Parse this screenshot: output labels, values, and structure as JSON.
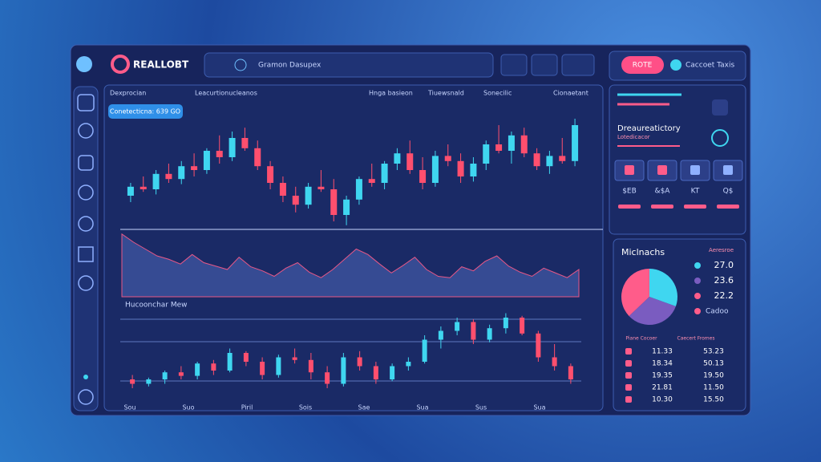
{
  "header": {
    "brand": "REALLOBT",
    "search": "Gramon Dasupex",
    "button": "ROTE",
    "user": "Caccoet Taxis"
  },
  "toolbar": [
    "Dexprocian",
    "Leacurtionucleanos",
    "Hnga basieon",
    "Tiuewsnald",
    "Sonecilic",
    "Cionaetant"
  ],
  "badge": "Conetecticna: 639 GO",
  "main_chart": {
    "type": "candlestick",
    "ylim": [
      0,
      100
    ],
    "candles": [
      [
        35,
        45,
        30,
        42
      ],
      [
        42,
        50,
        38,
        40
      ],
      [
        40,
        55,
        36,
        52
      ],
      [
        52,
        60,
        45,
        48
      ],
      [
        48,
        62,
        44,
        58
      ],
      [
        58,
        68,
        50,
        55
      ],
      [
        55,
        72,
        52,
        70
      ],
      [
        70,
        82,
        60,
        65
      ],
      [
        65,
        85,
        62,
        80
      ],
      [
        80,
        88,
        70,
        72
      ],
      [
        72,
        78,
        55,
        58
      ],
      [
        58,
        62,
        40,
        45
      ],
      [
        45,
        50,
        30,
        35
      ],
      [
        35,
        42,
        22,
        28
      ],
      [
        28,
        45,
        25,
        42
      ],
      [
        42,
        55,
        38,
        40
      ],
      [
        40,
        48,
        15,
        20
      ],
      [
        20,
        35,
        12,
        32
      ],
      [
        32,
        50,
        28,
        48
      ],
      [
        48,
        60,
        42,
        45
      ],
      [
        45,
        62,
        40,
        60
      ],
      [
        60,
        72,
        55,
        68
      ],
      [
        68,
        78,
        52,
        55
      ],
      [
        55,
        65,
        40,
        45
      ],
      [
        45,
        70,
        42,
        66
      ],
      [
        66,
        75,
        58,
        62
      ],
      [
        62,
        68,
        45,
        50
      ],
      [
        50,
        65,
        46,
        60
      ],
      [
        60,
        78,
        55,
        75
      ],
      [
        75,
        90,
        68,
        70
      ],
      [
        70,
        85,
        60,
        82
      ],
      [
        82,
        88,
        65,
        68
      ],
      [
        68,
        72,
        55,
        58
      ],
      [
        58,
        70,
        52,
        66
      ],
      [
        66,
        80,
        60,
        62
      ],
      [
        62,
        95,
        58,
        90
      ]
    ],
    "area": [
      92,
      80,
      70,
      60,
      55,
      48,
      62,
      50,
      45,
      40,
      58,
      44,
      38,
      30,
      42,
      50,
      36,
      28,
      40,
      55,
      70,
      62,
      48,
      35,
      46,
      58,
      40,
      30,
      28,
      44,
      38,
      52,
      60,
      45,
      36,
      30,
      42,
      35,
      28,
      40
    ]
  },
  "lower_chart": {
    "type": "candlestick",
    "title": "Hucoonchar Mew",
    "ylim": [
      0,
      100
    ],
    "candles": [
      [
        20,
        25,
        10,
        15
      ],
      [
        15,
        22,
        12,
        20
      ],
      [
        20,
        30,
        15,
        28
      ],
      [
        28,
        35,
        20,
        24
      ],
      [
        24,
        40,
        20,
        38
      ],
      [
        38,
        42,
        25,
        30
      ],
      [
        30,
        55,
        28,
        50
      ],
      [
        50,
        52,
        35,
        40
      ],
      [
        40,
        45,
        20,
        25
      ],
      [
        25,
        48,
        22,
        45
      ],
      [
        45,
        55,
        38,
        42
      ],
      [
        42,
        50,
        20,
        28
      ],
      [
        28,
        35,
        10,
        15
      ],
      [
        15,
        50,
        12,
        45
      ],
      [
        45,
        52,
        30,
        35
      ],
      [
        35,
        40,
        15,
        20
      ],
      [
        20,
        38,
        18,
        35
      ],
      [
        35,
        45,
        30,
        40
      ],
      [
        40,
        70,
        38,
        65
      ],
      [
        65,
        80,
        55,
        75
      ],
      [
        75,
        90,
        70,
        85
      ],
      [
        85,
        88,
        60,
        65
      ],
      [
        65,
        82,
        62,
        78
      ],
      [
        78,
        95,
        72,
        90
      ],
      [
        90,
        92,
        70,
        72
      ],
      [
        72,
        75,
        40,
        45
      ],
      [
        45,
        60,
        30,
        35
      ],
      [
        35,
        38,
        15,
        20
      ]
    ],
    "xticks": [
      "Sou",
      "Suo",
      "Piril",
      "Sois",
      "Sae",
      "Sua",
      "Sus",
      "Sua"
    ]
  },
  "side": {
    "title": "Dreaureatictory",
    "subtitle": "Lotedicacor",
    "tiles": [
      "$EB",
      "&$A",
      "KT",
      "Q$"
    ]
  },
  "stats": {
    "title": "Miclnachs",
    "subtitle": "Aeresroe",
    "extra": "Cadoo",
    "pie": {
      "type": "pie",
      "values": [
        27.0,
        23.6,
        22.2
      ],
      "value_labels": [
        "27.0",
        "23.6",
        "22.2"
      ],
      "colors": [
        "#ff5c8a",
        "#7a5cc0",
        "#3fd6f0"
      ]
    },
    "table": {
      "headers": [
        "Piane Cocoer",
        "Caecert Fromes"
      ],
      "rows": [
        [
          "11.33",
          "53.23"
        ],
        [
          "18.34",
          "50.13"
        ],
        [
          "19.35",
          "19.50"
        ],
        [
          "21.81",
          "11.50"
        ],
        [
          "10.30",
          "15.50"
        ]
      ]
    }
  }
}
